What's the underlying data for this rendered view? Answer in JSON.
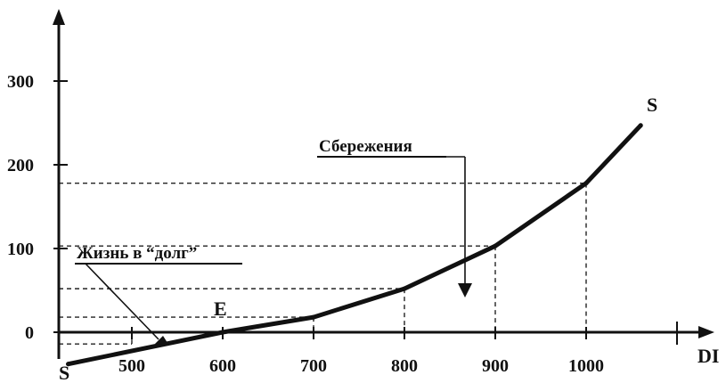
{
  "chart_data": {
    "type": "line",
    "title": "",
    "xlabel": "DI",
    "ylabel": "",
    "xlim": [
      420,
      1140
    ],
    "ylim": [
      -40,
      390
    ],
    "x_ticks": [
      500,
      600,
      700,
      800,
      900,
      1000
    ],
    "y_ticks": [
      0,
      100,
      200,
      300
    ],
    "grid": false,
    "series": [
      {
        "x": [
          430,
          600,
          700,
          800,
          900,
          1000,
          1060
        ],
        "y": [
          -38,
          0,
          18,
          52,
          103,
          178,
          247
        ]
      }
    ],
    "guides": [
      {
        "x": 500,
        "y": -14
      },
      {
        "x": 700,
        "y": 18
      },
      {
        "x": 800,
        "y": 52
      },
      {
        "x": 900,
        "y": 103
      },
      {
        "x": 1000,
        "y": 178
      }
    ],
    "annotations": {
      "start_label": "S",
      "end_label": "S",
      "equilibrium_label": "E",
      "savings_label": "Сбережения",
      "debt_label": "Жизнь в “долг”"
    }
  }
}
